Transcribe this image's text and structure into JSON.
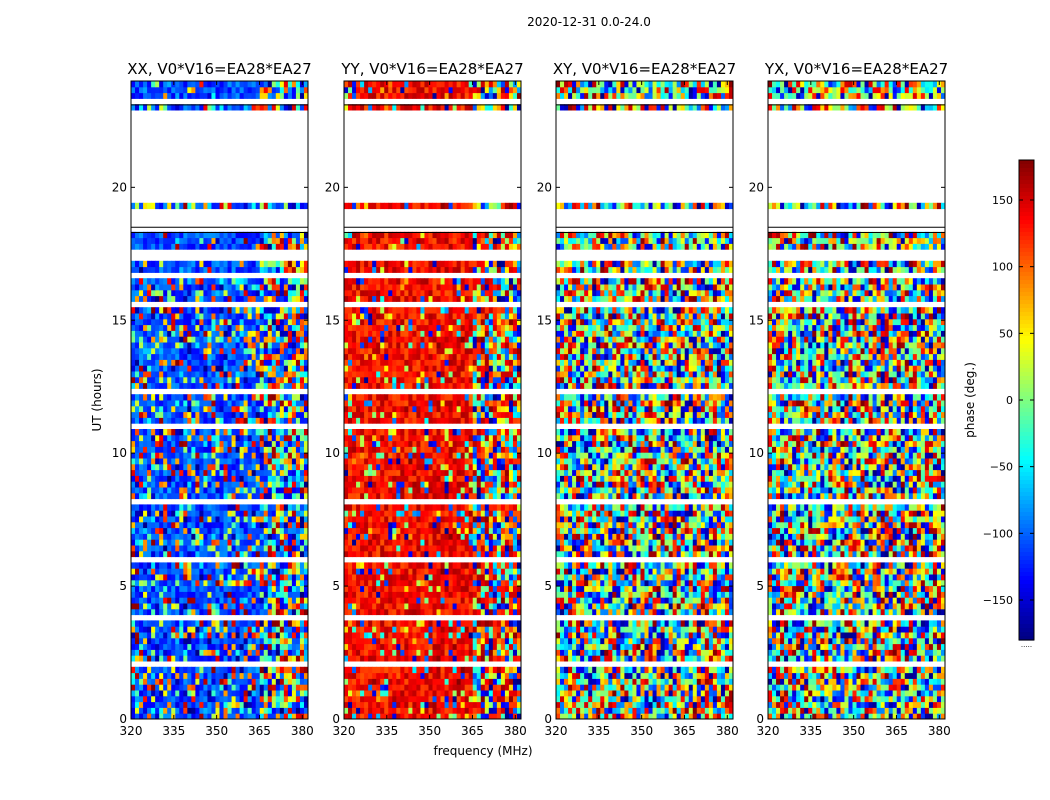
{
  "chart_data": {
    "type": "heatmap",
    "suptitle": "2020-12-31 0.0-24.0",
    "xlabel": "frequency (MHz)",
    "ylabel": "UT (hours)",
    "xlim": [
      320,
      382
    ],
    "ylim": [
      0,
      24
    ],
    "xticks": [
      320,
      335,
      350,
      365,
      380
    ],
    "yticks": [
      0,
      5,
      10,
      15,
      20
    ],
    "colorbar": {
      "label": "phase (deg.)",
      "range": [
        -180,
        180
      ],
      "ticks": [
        -150,
        -100,
        -50,
        0,
        50,
        100,
        150
      ],
      "colormap": "jet",
      "under_label": "....."
    },
    "panels": [
      {
        "title": "XX, V0*V16=EA28*EA27",
        "pol": "XX",
        "base_phase": -110,
        "coherence": 0.55
      },
      {
        "title": "YY, V0*V16=EA28*EA27",
        "pol": "YY",
        "base_phase": 135,
        "coherence": 0.8
      },
      {
        "title": "XY, V0*V16=EA28*EA27",
        "pol": "XY",
        "base_phase": 0,
        "coherence": 0.05
      },
      {
        "title": "YX, V0*V16=EA28*EA27",
        "pol": "YX",
        "base_phase": 0,
        "coherence": 0.05
      }
    ],
    "gaps_ut_hours": [
      [
        1.9,
        2.1
      ],
      [
        3.4,
        3.55
      ],
      [
        3.7,
        3.85
      ],
      [
        5.15,
        5.25
      ],
      [
        6.0,
        6.15
      ],
      [
        6.3,
        6.4
      ],
      [
        8.15,
        8.3
      ],
      [
        9.1,
        9.2
      ],
      [
        10.95,
        11.05
      ],
      [
        12.3,
        12.4
      ],
      [
        15.6,
        15.7
      ],
      [
        16.6,
        16.7
      ],
      [
        17.3,
        17.45
      ],
      [
        17.55,
        17.65
      ],
      [
        18.3,
        19.3
      ],
      [
        19.45,
        22.95
      ],
      [
        23.15,
        23.3
      ]
    ],
    "coherent_ut_bands": [
      [
        4.6,
        5.1
      ],
      [
        7.8,
        8.1
      ],
      [
        17.75,
        18.3
      ],
      [
        23.4,
        23.9
      ],
      [
        16.8,
        17.2
      ]
    ]
  }
}
